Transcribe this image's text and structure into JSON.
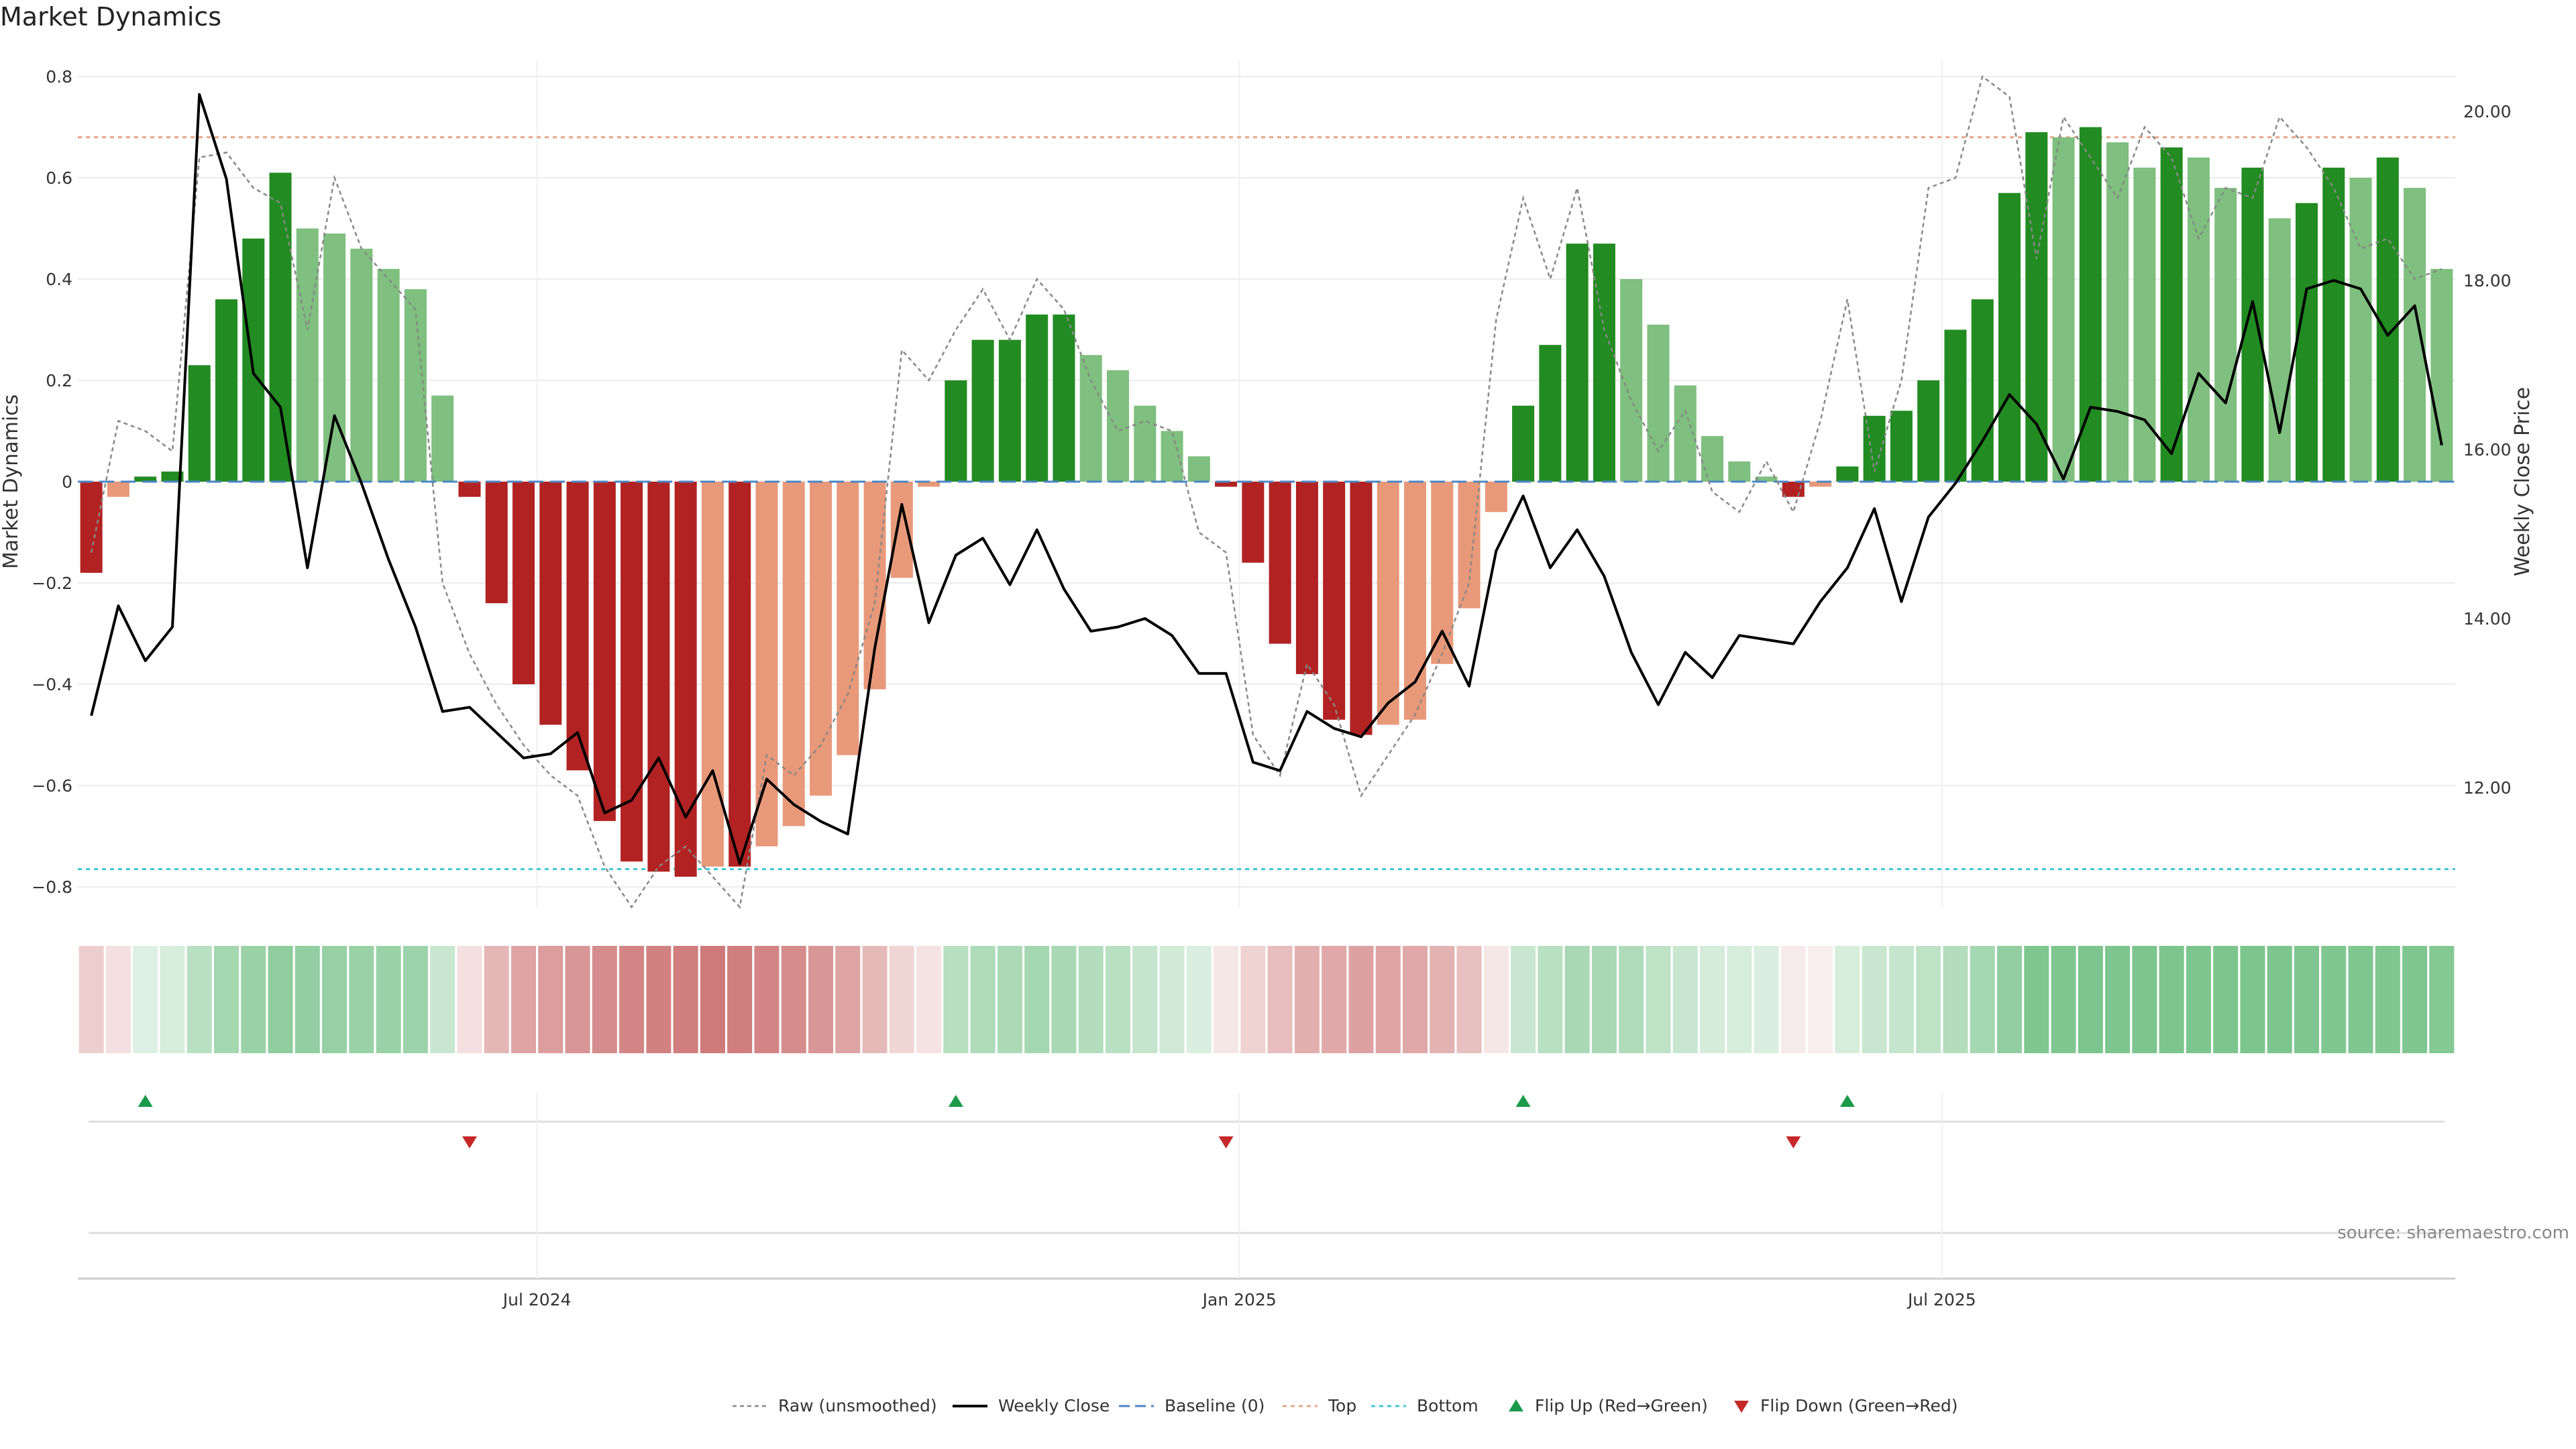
{
  "chart_data": {
    "type": "bar",
    "title": "Market Dynamics",
    "ylabel": "Market Dynamics",
    "y2label": "Weekly Close Price",
    "ylim": [
      -0.84,
      0.86
    ],
    "y2lim": [
      10.9,
      21.0
    ],
    "yticks": [
      0.8,
      0.6,
      0.4,
      0.2,
      0,
      -0.2,
      -0.4,
      -0.6,
      -0.8
    ],
    "ytick_labels": [
      "0.8",
      "0.6",
      "0.4",
      "0.2",
      "0",
      "−0.2",
      "−0.4",
      "−0.6",
      "−0.8"
    ],
    "y2ticks": [
      20,
      18,
      16,
      14,
      12
    ],
    "y2tick_labels": [
      "20.00",
      "18.00",
      "16.00",
      "14.00",
      "12.00"
    ],
    "xtick_labels": [
      {
        "index": 17,
        "label": "Jul 2024"
      },
      {
        "index": 43,
        "label": "Jan 2025"
      },
      {
        "index": 69,
        "label": "Jul 2025"
      }
    ],
    "top_level": 0.68,
    "bottom_level": -0.765,
    "baseline": 0,
    "momentum": [
      -0.18,
      -0.03,
      0.01,
      0.02,
      0.23,
      0.36,
      0.48,
      0.61,
      0.5,
      0.49,
      0.46,
      0.42,
      0.38,
      0.17,
      -0.03,
      -0.24,
      -0.4,
      -0.48,
      -0.57,
      -0.67,
      -0.75,
      -0.77,
      -0.78,
      -0.76,
      -0.76,
      -0.72,
      -0.68,
      -0.62,
      -0.54,
      -0.41,
      -0.19,
      -0.01,
      0.2,
      0.28,
      0.28,
      0.33,
      0.33,
      0.25,
      0.22,
      0.15,
      0.1,
      0.05,
      -0.01,
      -0.16,
      -0.32,
      -0.38,
      -0.47,
      -0.5,
      -0.48,
      -0.47,
      -0.36,
      -0.25,
      -0.06,
      0.15,
      0.27,
      0.47,
      0.47,
      0.4,
      0.31,
      0.19,
      0.09,
      0.04,
      0.01,
      -0.03,
      -0.01,
      0.03,
      0.13,
      0.14,
      0.2,
      0.3,
      0.36,
      0.57,
      0.69,
      0.68,
      0.7,
      0.67,
      0.62,
      0.66,
      0.64,
      0.58,
      0.62,
      0.52,
      0.55,
      0.62,
      0.6,
      0.64,
      0.58,
      0.42
    ],
    "raw": [
      -0.14,
      0.12,
      0.1,
      0.06,
      0.64,
      0.65,
      0.58,
      0.55,
      0.3,
      0.6,
      0.46,
      0.4,
      0.34,
      -0.2,
      -0.34,
      -0.44,
      -0.52,
      -0.58,
      -0.62,
      -0.76,
      -0.84,
      -0.76,
      -0.72,
      -0.78,
      -0.84,
      -0.54,
      -0.58,
      -0.52,
      -0.42,
      -0.24,
      0.26,
      0.2,
      0.3,
      0.38,
      0.28,
      0.4,
      0.34,
      0.2,
      0.1,
      0.12,
      0.1,
      -0.1,
      -0.14,
      -0.5,
      -0.58,
      -0.36,
      -0.44,
      -0.62,
      -0.54,
      -0.46,
      -0.34,
      -0.2,
      0.32,
      0.56,
      0.4,
      0.58,
      0.3,
      0.16,
      0.06,
      0.14,
      -0.02,
      -0.06,
      0.04,
      -0.06,
      0.12,
      0.36,
      0.02,
      0.2,
      0.58,
      0.6,
      0.8,
      0.76,
      0.44,
      0.72,
      0.64,
      0.56,
      0.7,
      0.64,
      0.48,
      0.58,
      0.56,
      0.72,
      0.66,
      0.58,
      0.46,
      0.48,
      0.4,
      0.42
    ],
    "close": [
      12.85,
      14.15,
      13.5,
      13.9,
      20.2,
      19.2,
      16.9,
      16.5,
      14.6,
      16.4,
      15.6,
      14.7,
      13.9,
      12.9,
      12.95,
      12.65,
      12.35,
      12.4,
      12.65,
      11.7,
      11.85,
      12.35,
      11.65,
      12.2,
      11.1,
      12.1,
      11.8,
      11.6,
      11.45,
      13.65,
      15.35,
      13.95,
      14.75,
      14.95,
      14.4,
      15.05,
      14.35,
      13.85,
      13.9,
      14.0,
      13.8,
      13.35,
      13.35,
      12.3,
      12.2,
      12.9,
      12.7,
      12.6,
      13.0,
      13.25,
      13.85,
      13.2,
      14.8,
      15.45,
      14.6,
      15.05,
      14.5,
      13.6,
      12.98,
      13.6,
      13.3,
      13.8,
      13.75,
      13.7,
      14.2,
      14.6,
      15.3,
      14.2,
      15.2,
      15.6,
      16.1,
      16.65,
      16.3,
      15.65,
      16.5,
      16.45,
      16.35,
      15.95,
      16.9,
      16.55,
      17.75,
      16.2,
      17.9,
      18.0,
      17.9,
      17.35,
      17.7,
      16.05
    ],
    "strip_levels": [
      -0.28,
      -0.18,
      0.18,
      0.22,
      0.38,
      0.5,
      0.56,
      0.62,
      0.6,
      0.58,
      0.56,
      0.56,
      0.54,
      0.3,
      -0.18,
      -0.42,
      -0.52,
      -0.56,
      -0.6,
      -0.66,
      -0.7,
      -0.72,
      -0.74,
      -0.76,
      -0.74,
      -0.7,
      -0.66,
      -0.6,
      -0.52,
      -0.4,
      -0.24,
      -0.16,
      0.4,
      0.45,
      0.46,
      0.5,
      0.48,
      0.42,
      0.38,
      0.32,
      0.26,
      0.2,
      -0.14,
      -0.26,
      -0.38,
      -0.46,
      -0.5,
      -0.54,
      -0.52,
      -0.5,
      -0.44,
      -0.36,
      -0.14,
      0.3,
      0.38,
      0.48,
      0.48,
      0.44,
      0.36,
      0.3,
      0.24,
      0.22,
      0.2,
      -0.12,
      -0.1,
      0.22,
      0.3,
      0.32,
      0.36,
      0.42,
      0.5,
      0.6,
      0.7,
      0.7,
      0.72,
      0.72,
      0.72,
      0.72,
      0.72,
      0.72,
      0.72,
      0.72,
      0.7,
      0.7,
      0.7,
      0.7,
      0.7,
      0.68
    ],
    "flip_up": [
      2,
      32,
      53,
      65
    ],
    "flip_down": [
      14,
      42,
      63
    ],
    "source_note": "source: sharemaestro.com",
    "legend_position": "bottom-center",
    "legend": [
      "Raw (unsmoothed)",
      "Weekly Close",
      "Baseline (0)",
      "Top",
      "Bottom",
      "Flip Up (Red→Green)",
      "Flip Down (Green→Red)"
    ],
    "colors": {
      "strong_green": "#228B22",
      "light_green": "#7FBF7F",
      "strong_red": "#B22222",
      "light_red": "#E8997A",
      "close": "#000000",
      "raw": "#888888",
      "baseline": "#4A86C5",
      "top": "#E8A48A",
      "bottom": "#3FC7D4",
      "flip_up": "#1A9A4A",
      "flip_down": "#C62828"
    }
  }
}
